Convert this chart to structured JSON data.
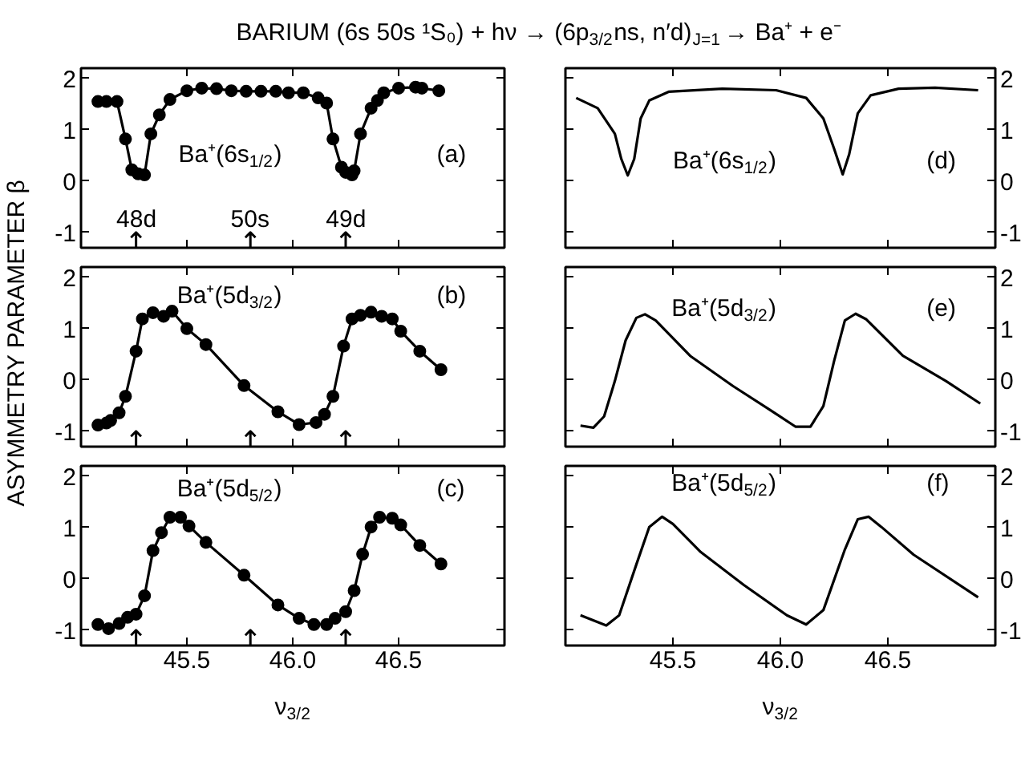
{
  "chart_data": [
    {
      "type": "line",
      "title": "BARIUM (6s 50s ¹S₀) + hν → (6p$_{3/2}$ns, n′d)$_{J=1}$ → Ba⁺ + e⁻",
      "marker": "circle",
      "line_style": "solid",
      "xlim": [
        45.0,
        47.0
      ],
      "ylim": [
        -1.3,
        2.2
      ],
      "xticks": [
        {
          "value": 45.5,
          "label": null
        },
        {
          "value": 46.0,
          "label": null
        },
        {
          "value": 46.5,
          "label": null
        }
      ],
      "yticks": [
        -1,
        0,
        1,
        2
      ],
      "tick_labels": "y",
      "annotations": [
        "Ba⁺(6s$_{1/2}$)",
        "(a)"
      ],
      "ref_lines": [
        {
          "axis": "x",
          "value": 45.26,
          "label": "48d"
        },
        {
          "axis": "x",
          "value": 45.8,
          "label": "50s"
        },
        {
          "axis": "x",
          "value": 46.25,
          "label": "49d"
        }
      ],
      "series": [
        {
          "color": "#000000",
          "x": [
            45.08,
            45.12,
            45.17,
            45.21,
            45.24,
            45.27,
            45.3,
            45.33,
            45.37,
            45.42,
            45.5,
            45.57,
            45.64,
            45.71,
            45.78,
            45.85,
            45.92,
            45.98,
            46.05,
            46.12,
            46.16,
            46.19,
            46.23,
            46.25,
            46.28,
            46.29,
            46.32,
            46.37,
            46.4,
            46.43,
            46.5,
            46.58,
            46.61,
            46.69
          ],
          "values": [
            1.55,
            1.55,
            1.55,
            0.82,
            0.22,
            0.14,
            0.12,
            0.92,
            1.29,
            1.59,
            1.76,
            1.81,
            1.8,
            1.76,
            1.75,
            1.75,
            1.75,
            1.72,
            1.72,
            1.62,
            1.52,
            0.82,
            0.27,
            0.17,
            0.12,
            0.2,
            0.92,
            1.42,
            1.57,
            1.72,
            1.81,
            1.83,
            1.81,
            1.76
          ]
        }
      ]
    },
    {
      "type": "line",
      "ylabel": "ASYMMETRY PARAMETER β",
      "marker": "circle",
      "line_style": "solid",
      "xlim": [
        45.0,
        47.0
      ],
      "ylim": [
        -1.3,
        2.2
      ],
      "xticks": [
        {
          "value": 45.5,
          "label": null
        },
        {
          "value": 46.0,
          "label": null
        },
        {
          "value": 46.5,
          "label": null
        }
      ],
      "yticks": [
        -1,
        0,
        1,
        2
      ],
      "tick_labels": "y",
      "annotations": [
        "Ba⁺(5d$_{3/2}$)",
        "(b)"
      ],
      "ref_lines": [
        {
          "axis": "x",
          "value": 45.26
        },
        {
          "axis": "x",
          "value": 45.8
        },
        {
          "axis": "x",
          "value": 46.25
        }
      ],
      "series": [
        {
          "color": "#000000",
          "x": [
            45.08,
            45.12,
            45.14,
            45.18,
            45.21,
            45.26,
            45.29,
            45.34,
            45.39,
            45.43,
            45.5,
            45.59,
            45.77,
            45.93,
            46.03,
            46.11,
            46.15,
            46.19,
            46.24,
            46.28,
            46.32,
            46.37,
            46.42,
            46.47,
            46.51,
            46.6,
            46.7
          ],
          "values": [
            -0.88,
            -0.84,
            -0.79,
            -0.64,
            -0.32,
            0.56,
            1.19,
            1.31,
            1.24,
            1.34,
            1.0,
            0.69,
            -0.11,
            -0.62,
            -0.87,
            -0.83,
            -0.67,
            -0.32,
            0.66,
            1.19,
            1.26,
            1.32,
            1.24,
            1.19,
            0.95,
            0.56,
            0.2
          ]
        }
      ]
    },
    {
      "type": "line",
      "xlabel": "ν$_{3/2}$",
      "marker": "circle",
      "line_style": "solid",
      "xlim": [
        45.0,
        47.0
      ],
      "ylim": [
        -1.3,
        2.2
      ],
      "xticks": [
        {
          "value": 45.5,
          "label": "45.5"
        },
        {
          "value": 46.0,
          "label": "46.0"
        },
        {
          "value": 46.5,
          "label": "46.5"
        }
      ],
      "yticks": [
        -1,
        0,
        1,
        2
      ],
      "annotations": [
        "Ba⁺(5d$_{5/2}$)",
        "(c)"
      ],
      "ref_lines": [
        {
          "axis": "x",
          "value": 45.26
        },
        {
          "axis": "x",
          "value": 45.8
        },
        {
          "axis": "x",
          "value": 46.25
        }
      ],
      "series": [
        {
          "color": "#000000",
          "x": [
            45.08,
            45.13,
            45.18,
            45.22,
            45.26,
            45.3,
            45.34,
            45.38,
            45.42,
            45.47,
            45.51,
            45.59,
            45.77,
            45.93,
            46.03,
            46.1,
            46.16,
            46.2,
            46.25,
            46.29,
            46.33,
            46.37,
            46.41,
            46.47,
            46.51,
            46.6,
            46.7
          ],
          "values": [
            -0.89,
            -0.97,
            -0.87,
            -0.75,
            -0.69,
            -0.33,
            0.55,
            0.9,
            1.2,
            1.2,
            1.03,
            0.71,
            0.07,
            -0.51,
            -0.77,
            -0.89,
            -0.89,
            -0.77,
            -0.64,
            -0.23,
            0.48,
            1.01,
            1.2,
            1.18,
            1.05,
            0.65,
            0.29
          ]
        }
      ]
    },
    {
      "type": "line",
      "line_style": "solid",
      "xlim": [
        45.0,
        47.0
      ],
      "ylim": [
        -1.3,
        2.2
      ],
      "xticks": [
        {
          "value": 45.5,
          "label": null
        },
        {
          "value": 46.0,
          "label": null
        },
        {
          "value": 46.5,
          "label": null
        }
      ],
      "yticks": [
        -1,
        0,
        1,
        2
      ],
      "tick_labels": "y",
      "annotations": [
        "Ba⁺(6s$_{1/2}$)",
        "(d)"
      ],
      "series": [
        {
          "color": "#000000",
          "x": [
            45.05,
            45.15,
            45.23,
            45.26,
            45.29,
            45.32,
            45.35,
            45.39,
            45.48,
            45.73,
            45.98,
            46.12,
            46.2,
            46.25,
            46.29,
            46.32,
            46.36,
            46.42,
            46.55,
            46.72,
            46.92
          ],
          "values": [
            1.62,
            1.42,
            0.92,
            0.43,
            0.11,
            0.43,
            1.22,
            1.57,
            1.74,
            1.8,
            1.77,
            1.62,
            1.22,
            0.63,
            0.13,
            0.52,
            1.32,
            1.67,
            1.8,
            1.82,
            1.77
          ]
        }
      ]
    },
    {
      "type": "line",
      "line_style": "solid",
      "xlim": [
        45.0,
        47.0
      ],
      "ylim": [
        -1.3,
        2.2
      ],
      "xticks": [
        {
          "value": 45.5,
          "label": null
        },
        {
          "value": 46.0,
          "label": null
        },
        {
          "value": 46.5,
          "label": null
        }
      ],
      "yticks": [
        -1,
        0,
        1,
        2
      ],
      "tick_labels": "y",
      "annotations": [
        "Ba⁺(5d$_{3/2}$)",
        "(e)"
      ],
      "series": [
        {
          "color": "#000000",
          "x": [
            45.07,
            45.13,
            45.18,
            45.23,
            45.28,
            45.33,
            45.37,
            45.42,
            45.58,
            45.78,
            45.98,
            46.07,
            46.14,
            46.2,
            46.25,
            46.3,
            46.35,
            46.4,
            46.57,
            46.77,
            46.93
          ],
          "values": [
            -0.89,
            -0.93,
            -0.71,
            -0.02,
            0.77,
            1.21,
            1.28,
            1.16,
            0.47,
            -0.12,
            -0.66,
            -0.91,
            -0.91,
            -0.51,
            0.37,
            1.16,
            1.29,
            1.18,
            0.47,
            -0.02,
            -0.46
          ]
        }
      ]
    },
    {
      "type": "line",
      "xlabel": "ν$_{3/2}$",
      "line_style": "solid",
      "xlim": [
        45.0,
        47.0
      ],
      "ylim": [
        -1.3,
        2.2
      ],
      "xticks": [
        {
          "value": 45.5,
          "label": "45.5"
        },
        {
          "value": 46.0,
          "label": "46.0"
        },
        {
          "value": 46.5,
          "label": "46.5"
        }
      ],
      "yticks": [
        -1,
        0,
        1,
        2
      ],
      "annotations": [
        "Ba⁺(5d$_{5/2}$)",
        "(f)"
      ],
      "series": [
        {
          "color": "#000000",
          "x": [
            45.07,
            45.19,
            45.25,
            45.33,
            45.39,
            45.45,
            45.5,
            45.63,
            45.83,
            46.03,
            46.12,
            46.2,
            46.3,
            46.36,
            46.41,
            46.47,
            46.62,
            46.92
          ],
          "values": [
            -0.71,
            -0.91,
            -0.71,
            0.28,
            1.01,
            1.21,
            1.07,
            0.52,
            -0.12,
            -0.71,
            -0.89,
            -0.61,
            0.57,
            1.16,
            1.21,
            1.01,
            0.47,
            -0.36
          ]
        }
      ]
    }
  ]
}
